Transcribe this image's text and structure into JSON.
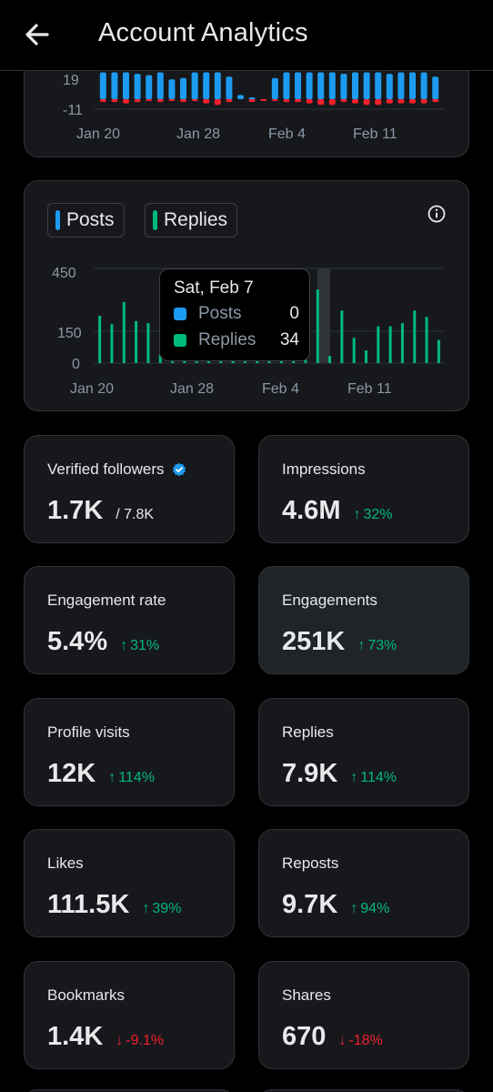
{
  "header": {
    "title": "Account Analytics",
    "back_icon": "arrow-left-icon"
  },
  "colors": {
    "posts": "#1d9bf0",
    "replies": "#00ba7c",
    "negative": "#f4212e",
    "up": "#00ba7c",
    "down": "#f4212e",
    "verified": "#1d9bf0"
  },
  "net_chart": {
    "type": "bar",
    "y_ticks": [
      "19",
      "-11"
    ],
    "x_ticks": [
      "Jan 20",
      "Jan 28",
      "Feb 4",
      "Feb 11"
    ],
    "chart_data": {
      "type": "bar",
      "categories": [
        "Jan 18",
        "Jan 19",
        "Jan 20",
        "Jan 21",
        "Jan 22",
        "Jan 23",
        "Jan 24",
        "Jan 25",
        "Jan 26",
        "Jan 27",
        "Jan 28",
        "Jan 29",
        "Jan 30",
        "Jan 31",
        "Feb 1",
        "Feb 2",
        "Feb 3",
        "Feb 4",
        "Feb 5",
        "Feb 6",
        "Feb 7",
        "Feb 8",
        "Feb 9",
        "Feb 10",
        "Feb 11",
        "Feb 12",
        "Feb 13",
        "Feb 14",
        "Feb 15",
        "Feb 16"
      ],
      "series": [
        {
          "name": "positive",
          "values": [
            19,
            19,
            19,
            18,
            17,
            19,
            14,
            15,
            19,
            19,
            19,
            16,
            3,
            1,
            0,
            15,
            19,
            19,
            19,
            19,
            19,
            18,
            19,
            19,
            19,
            18,
            19,
            19,
            19,
            16
          ]
        },
        {
          "name": "negative",
          "values": [
            -2,
            -2,
            -3,
            -2,
            -1,
            -2,
            -1,
            -2,
            -1,
            -3,
            -4,
            -2,
            0,
            -2,
            -1,
            -1,
            -2,
            -2,
            -3,
            -4,
            -4,
            -2,
            -3,
            -4,
            -4,
            -3,
            -3,
            -3,
            -3,
            -2
          ]
        }
      ],
      "ylim": [
        -11,
        19
      ]
    }
  },
  "activity_chart": {
    "legend": [
      {
        "label": "Posts"
      },
      {
        "label": "Replies"
      }
    ],
    "info_icon": "info-circle-icon",
    "y_ticks": [
      "450",
      "150",
      "0"
    ],
    "x_ticks": [
      "Jan 20",
      "Jan 28",
      "Feb 4",
      "Feb 11"
    ],
    "chart_data": {
      "type": "bar",
      "categories": [
        "Jan 19",
        "Jan 20",
        "Jan 21",
        "Jan 22",
        "Jan 23",
        "Jan 24",
        "Jan 25",
        "Jan 26",
        "Jan 27",
        "Jan 28",
        "Jan 29",
        "Jan 30",
        "Jan 31",
        "Feb 1",
        "Feb 2",
        "Feb 3",
        "Feb 4",
        "Feb 5",
        "Feb 6",
        "Feb 7",
        "Feb 8",
        "Feb 9",
        "Feb 10",
        "Feb 11",
        "Feb 12",
        "Feb 13",
        "Feb 14",
        "Feb 15",
        "Feb 16"
      ],
      "series": [
        {
          "name": "Posts",
          "values": [
            0,
            0,
            0,
            0,
            0,
            0,
            0,
            0,
            0,
            0,
            0,
            0,
            0,
            0,
            0,
            0,
            0,
            0,
            0,
            0,
            0,
            0,
            0,
            0,
            0,
            0,
            0,
            0,
            0
          ]
        },
        {
          "name": "Replies",
          "values": [
            225,
            185,
            290,
            200,
            190,
            40,
            60,
            50,
            40,
            45,
            60,
            55,
            50,
            45,
            55,
            60,
            65,
            110,
            350,
            34,
            250,
            120,
            60,
            175,
            175,
            190,
            250,
            220,
            110
          ]
        }
      ],
      "ylim": [
        0,
        450
      ]
    },
    "tooltip": {
      "title": "Sat, Feb 7",
      "rows": [
        {
          "name": "Posts",
          "value": "0"
        },
        {
          "name": "Replies",
          "value": "34"
        }
      ]
    }
  },
  "metrics": [
    {
      "label": "Verified followers",
      "value": "1.7K",
      "sub": "/ 7.8K",
      "delta": "",
      "direction": "",
      "verified_icon": "verified-badge-icon"
    },
    {
      "label": "Impressions",
      "value": "4.6M",
      "sub": "",
      "delta": "32%",
      "direction": "up"
    },
    {
      "label": "Engagement rate",
      "value": "5.4%",
      "sub": "",
      "delta": "31%",
      "direction": "up"
    },
    {
      "label": "Engagements",
      "value": "251K",
      "sub": "",
      "delta": "73%",
      "direction": "up"
    },
    {
      "label": "Profile visits",
      "value": "12K",
      "sub": "",
      "delta": "114%",
      "direction": "up"
    },
    {
      "label": "Replies",
      "value": "7.9K",
      "sub": "",
      "delta": "114%",
      "direction": "up"
    },
    {
      "label": "Likes",
      "value": "111.5K",
      "sub": "",
      "delta": "39%",
      "direction": "up"
    },
    {
      "label": "Reposts",
      "value": "9.7K",
      "sub": "",
      "delta": "94%",
      "direction": "up"
    },
    {
      "label": "Bookmarks",
      "value": "1.4K",
      "sub": "",
      "delta": "-9.1%",
      "direction": "down"
    },
    {
      "label": "Shares",
      "value": "670",
      "sub": "",
      "delta": "-18%",
      "direction": "down"
    }
  ]
}
